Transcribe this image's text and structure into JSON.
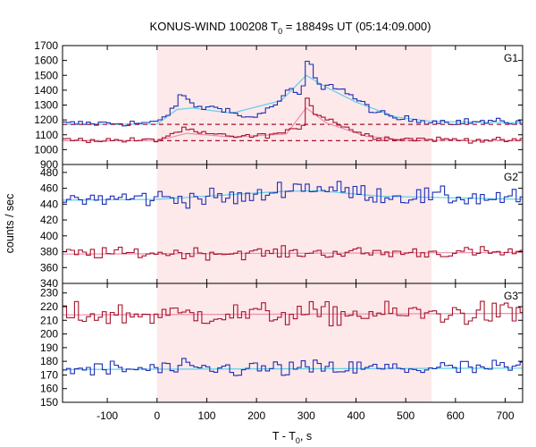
{
  "chart_data": {
    "type": "line",
    "title": {
      "prefix": "KONUS-WIND 100208 T",
      "sub": "0",
      "suffix": " = 18849s UT (05:14:09.000)"
    },
    "xlabel": {
      "prefix": "T - T",
      "sub": "0",
      "suffix": ", s"
    },
    "ylabel": "counts / sec",
    "xlim": [
      -190,
      735
    ],
    "xticks": [
      -100,
      0,
      100,
      200,
      300,
      400,
      500,
      600,
      700
    ],
    "shaded_interval": {
      "start": 0,
      "end": 552,
      "color": "#fde8ea"
    },
    "colors": {
      "blue": "#1c2fb4",
      "red": "#a8132b",
      "cyan": "#5fd0e8",
      "pink": "#e890b0"
    },
    "bin_width": 8,
    "panels": [
      {
        "name": "G1",
        "ylim": [
          900,
          1700
        ],
        "yticks": [
          900,
          1000,
          1100,
          1200,
          1300,
          1400,
          1500,
          1600,
          1700
        ],
        "series": [
          {
            "color": "blue",
            "background": 1175,
            "noise": 16,
            "profile": [
              [
                -190,
                1175
              ],
              [
                0,
                1180
              ],
              [
                20,
                1230
              ],
              [
                45,
                1340
              ],
              [
                55,
                1370
              ],
              [
                70,
                1300
              ],
              [
                100,
                1280
              ],
              [
                130,
                1290
              ],
              [
                150,
                1250
              ],
              [
                175,
                1215
              ],
              [
                200,
                1230
              ],
              [
                220,
                1260
              ],
              [
                240,
                1310
              ],
              [
                255,
                1360
              ],
              [
                268,
                1400
              ],
              [
                276,
                1395
              ],
              [
                285,
                1360
              ],
              [
                295,
                1420
              ],
              [
                302,
                1600
              ],
              [
                310,
                1570
              ],
              [
                318,
                1470
              ],
              [
                330,
                1410
              ],
              [
                345,
                1450
              ],
              [
                360,
                1420
              ],
              [
                385,
                1380
              ],
              [
                405,
                1320
              ],
              [
                420,
                1300
              ],
              [
                440,
                1250
              ],
              [
                460,
                1230
              ],
              [
                480,
                1210
              ],
              [
                520,
                1200
              ],
              [
                560,
                1190
              ],
              [
                735,
                1185
              ]
            ],
            "fit": [
              [
                -190,
                1170
              ],
              [
                0,
                1172
              ],
              [
                40,
                1270
              ],
              [
                70,
                1280
              ],
              [
                150,
                1245
              ],
              [
                250,
                1330
              ],
              [
                300,
                1500
              ],
              [
                340,
                1420
              ],
              [
                400,
                1320
              ],
              [
                480,
                1220
              ],
              [
                550,
                1190
              ],
              [
                735,
                1180
              ]
            ]
          },
          {
            "color": "red",
            "background": 1060,
            "noise": 12,
            "profile": [
              [
                -190,
                1065
              ],
              [
                0,
                1062
              ],
              [
                40,
                1120
              ],
              [
                60,
                1140
              ],
              [
                80,
                1110
              ],
              [
                120,
                1100
              ],
              [
                160,
                1090
              ],
              [
                200,
                1090
              ],
              [
                250,
                1110
              ],
              [
                275,
                1130
              ],
              [
                295,
                1170
              ],
              [
                302,
                1350
              ],
              [
                310,
                1300
              ],
              [
                320,
                1240
              ],
              [
                340,
                1210
              ],
              [
                370,
                1170
              ],
              [
                400,
                1120
              ],
              [
                430,
                1090
              ],
              [
                470,
                1075
              ],
              [
                735,
                1060
              ]
            ],
            "fit": [
              [
                -190,
                1060
              ],
              [
                0,
                1060
              ],
              [
                60,
                1110
              ],
              [
                150,
                1085
              ],
              [
                260,
                1105
              ],
              [
                300,
                1280
              ],
              [
                340,
                1180
              ],
              [
                420,
                1090
              ],
              [
                500,
                1065
              ],
              [
                735,
                1060
              ]
            ],
            "dashed": [
              [
                -190,
                1060
              ],
              [
                735,
                1060
              ]
            ],
            "dashed2": [
              [
                -190,
                1170
              ],
              [
                735,
                1170
              ]
            ]
          }
        ]
      },
      {
        "name": "G2",
        "ylim": [
          340,
          490
        ],
        "yticks": [
          340,
          360,
          380,
          400,
          420,
          440,
          460,
          480
        ],
        "series": [
          {
            "color": "blue",
            "background": 446,
            "noise": 8,
            "profile": [
              [
                -190,
                446
              ],
              [
                0,
                448
              ],
              [
                200,
                448
              ],
              [
                230,
                455
              ],
              [
                260,
                462
              ],
              [
                300,
                462
              ],
              [
                360,
                458
              ],
              [
                420,
                454
              ],
              [
                480,
                450
              ],
              [
                735,
                447
              ]
            ],
            "fit": [
              [
                -190,
                445
              ],
              [
                0,
                446
              ],
              [
                250,
                456
              ],
              [
                320,
                457
              ],
              [
                450,
                450
              ],
              [
                735,
                446
              ]
            ]
          },
          {
            "color": "red",
            "background": 378,
            "noise": 5,
            "profile": [
              [
                -190,
                378
              ],
              [
                735,
                379
              ]
            ],
            "fit": [
              [
                -190,
                377
              ],
              [
                735,
                379
              ]
            ]
          }
        ]
      },
      {
        "name": "G3",
        "ylim": [
          150,
          237
        ],
        "yticks": [
          150,
          160,
          170,
          180,
          190,
          200,
          210,
          220,
          230
        ],
        "series": [
          {
            "color": "red",
            "background": 214,
            "noise": 6,
            "profile": [
              [
                -190,
                214
              ],
              [
                735,
                215
              ]
            ],
            "fit": [
              [
                -190,
                214
              ],
              [
                735,
                215
              ]
            ]
          },
          {
            "color": "blue",
            "background": 174,
            "noise": 4.5,
            "profile": [
              [
                -190,
                174
              ],
              [
                735,
                175
              ]
            ],
            "fit": [
              [
                -190,
                174
              ],
              [
                735,
                175
              ]
            ]
          }
        ]
      }
    ]
  }
}
